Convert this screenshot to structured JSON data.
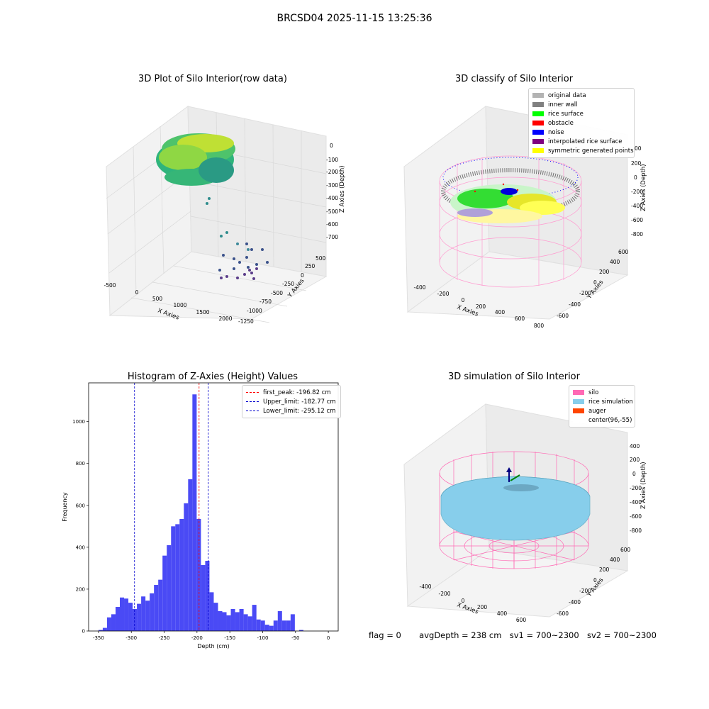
{
  "suptitle": "BRCSD04 2025-11-15 13:25:36",
  "panels": {
    "raw": {
      "title": "3D Plot of Silo Interior(row data)",
      "xlabel": "X Axies",
      "ylabel": "Y Axies",
      "zlabel": "Z Axies (Depth)",
      "xticks": [
        "-500",
        "0",
        "500",
        "1000",
        "1500",
        "2000"
      ],
      "yticks": [
        "500",
        "250",
        "0",
        "-250",
        "-500",
        "-750",
        "-1000",
        "-1250"
      ],
      "zticks": [
        "0",
        "-100",
        "-200",
        "-300",
        "-400",
        "-500",
        "-600",
        "-700"
      ]
    },
    "classify": {
      "title": "3D classify of Silo Interior",
      "xlabel": "X Axies",
      "ylabel": "Y Axies",
      "zlabel": "Z Axies (Depth)",
      "xticks": [
        "-400",
        "-200",
        "0",
        "200",
        "400",
        "600",
        "800"
      ],
      "yticks": [
        "600",
        "400",
        "200",
        "0",
        "-200",
        "-400",
        "-600"
      ],
      "zticks": [
        "200",
        "0",
        "-200",
        "-400",
        "-600",
        "-800"
      ],
      "legend_clip": "00",
      "legend": [
        {
          "label": "original data",
          "color": "#b3b3b3"
        },
        {
          "label": "inner wall",
          "color": "#808080"
        },
        {
          "label": "rice surface",
          "color": "#00ff00"
        },
        {
          "label": "obstacle",
          "color": "#ff0000"
        },
        {
          "label": "noise",
          "color": "#0000ff"
        },
        {
          "label": "interpolated rice surface",
          "color": "#800080"
        },
        {
          "label": "symmetric generated points",
          "color": "#ffff00"
        }
      ]
    },
    "simulation": {
      "title": "3D simulation of Silo Interior",
      "xlabel": "X Axies",
      "ylabel": "Y Axies",
      "zlabel": "Z Axies (Depth)",
      "xticks": [
        "-400",
        "-200",
        "0",
        "200",
        "400",
        "600"
      ],
      "yticks": [
        "600",
        "400",
        "200",
        "0",
        "-200",
        "-400",
        "-600"
      ],
      "zticks": [
        "400",
        "200",
        "0",
        "-200",
        "-400",
        "-600",
        "-800"
      ],
      "legend": [
        {
          "label": "silo",
          "color": "#ff69b4"
        },
        {
          "label": "rice simulation",
          "color": "#87ceeb"
        },
        {
          "label": "auger",
          "color": "#ff4500"
        },
        {
          "label": "center(96,-55)",
          "color": "#ffffff"
        }
      ]
    }
  },
  "chart_data": {
    "type": "bar",
    "title": "Histogram of Z-Axies (Height) Values",
    "xlabel": "Depth (cm)",
    "ylabel": "Frequency",
    "xlim": [
      -365,
      15
    ],
    "ylim": [
      0,
      1185
    ],
    "xticks": [
      -350,
      -300,
      -250,
      -200,
      -150,
      -100,
      -50,
      0
    ],
    "yticks": [
      0,
      200,
      400,
      600,
      800,
      1000
    ],
    "bin_width": 6.5,
    "bin_start": -350,
    "values": [
      5,
      15,
      65,
      80,
      115,
      160,
      155,
      135,
      105,
      130,
      165,
      145,
      180,
      220,
      245,
      360,
      410,
      500,
      510,
      535,
      610,
      725,
      1130,
      535,
      315,
      335,
      185,
      135,
      95,
      90,
      75,
      105,
      90,
      105,
      80,
      70,
      125,
      55,
      50,
      30,
      25,
      50,
      95,
      50,
      50,
      80,
      0,
      5
    ],
    "lines": [
      {
        "label": "first_peak: -196.82 cm",
        "x": -196.82,
        "color": "#ff0000"
      },
      {
        "label": "Upper_limit: -182.77 cm",
        "x": -182.77,
        "color": "#0000cd"
      },
      {
        "label": "Lower_limit: -295.12 cm",
        "x": -295.12,
        "color": "#0000cd"
      }
    ],
    "color": "#4a4af5"
  },
  "footer": {
    "flag": "flag = 0",
    "avg": "avgDepth = 238 cm",
    "sv1": "sv1 = 700~2300",
    "sv2": "sv2 = 700~2300"
  }
}
